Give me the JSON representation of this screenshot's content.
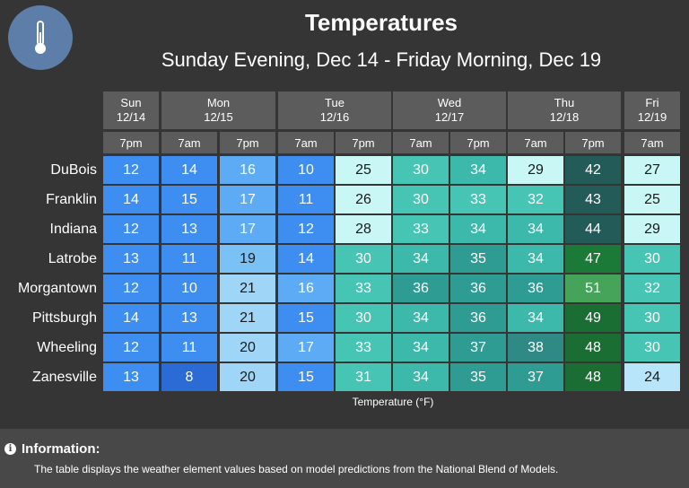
{
  "header": {
    "title": "Temperatures",
    "subtitle": "Sunday Evening, Dec 14 - Friday Morning, Dec 19",
    "logo_icon": "thermometer-icon"
  },
  "days": [
    {
      "name": "Sun",
      "date": "12/14"
    },
    {
      "name": "Mon",
      "date": "12/15"
    },
    {
      "name": "Tue",
      "date": "12/16"
    },
    {
      "name": "Wed",
      "date": "12/17"
    },
    {
      "name": "Thu",
      "date": "12/18"
    },
    {
      "name": "Fri",
      "date": "12/19"
    }
  ],
  "times": [
    "7pm",
    "7am",
    "7pm",
    "7am",
    "7pm",
    "7am",
    "7pm",
    "7am",
    "7pm",
    "7am"
  ],
  "rows": [
    {
      "city": "DuBois",
      "values": [
        12,
        14,
        16,
        10,
        25,
        30,
        34,
        29,
        42,
        27
      ]
    },
    {
      "city": "Franklin",
      "values": [
        14,
        15,
        17,
        11,
        26,
        30,
        33,
        32,
        43,
        25
      ]
    },
    {
      "city": "Indiana",
      "values": [
        12,
        13,
        17,
        12,
        28,
        33,
        34,
        34,
        44,
        29
      ]
    },
    {
      "city": "Latrobe",
      "values": [
        13,
        11,
        19,
        14,
        30,
        34,
        35,
        34,
        47,
        30
      ]
    },
    {
      "city": "Morgantown",
      "values": [
        12,
        10,
        21,
        16,
        33,
        36,
        36,
        36,
        51,
        32
      ]
    },
    {
      "city": "Pittsburgh",
      "values": [
        14,
        13,
        21,
        15,
        30,
        34,
        36,
        34,
        49,
        30
      ]
    },
    {
      "city": "Wheeling",
      "values": [
        12,
        11,
        20,
        17,
        33,
        34,
        37,
        38,
        48,
        30
      ]
    },
    {
      "city": "Zanesville",
      "values": [
        13,
        8,
        20,
        15,
        31,
        34,
        35,
        37,
        48,
        24
      ]
    }
  ],
  "axis_label": "Temperature (°F)",
  "info": {
    "title": "Information:",
    "icon": "info-icon",
    "text": "The table displays the weather element values based on model predictions from the National Blend of Models."
  },
  "color_scale": [
    {
      "max": 9,
      "bg": "#2b6bd6",
      "text": "light"
    },
    {
      "max": 15,
      "bg": "#3d8ef0",
      "text": "light"
    },
    {
      "max": 17,
      "bg": "#5cabf4",
      "text": "light"
    },
    {
      "max": 19,
      "bg": "#7ac2f6",
      "text": "dark"
    },
    {
      "max": 21,
      "bg": "#9fd6f8",
      "text": "dark"
    },
    {
      "max": 24,
      "bg": "#b8e5fa",
      "text": "dark"
    },
    {
      "max": 29,
      "bg": "#c8f7f5",
      "text": "dark"
    },
    {
      "max": 33,
      "bg": "#46c4b4",
      "text": "light"
    },
    {
      "max": 34,
      "bg": "#3cb9aa",
      "text": "light"
    },
    {
      "max": 37,
      "bg": "#2f9c93",
      "text": "light"
    },
    {
      "max": 38,
      "bg": "#2f8a85",
      "text": "light"
    },
    {
      "max": 44,
      "bg": "#235b58",
      "text": "light"
    },
    {
      "max": 47,
      "bg": "#1b7a38",
      "text": "light"
    },
    {
      "max": 49,
      "bg": "#1b6e33",
      "text": "light"
    },
    {
      "max": 99,
      "bg": "#45a35a",
      "text": "light"
    }
  ]
}
